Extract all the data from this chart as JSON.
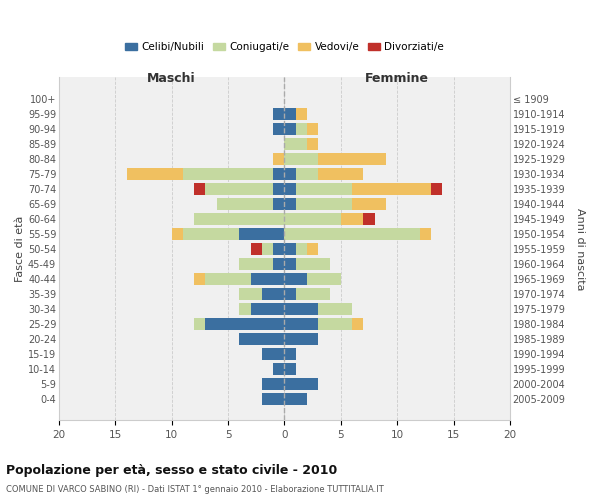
{
  "age_groups": [
    "0-4",
    "5-9",
    "10-14",
    "15-19",
    "20-24",
    "25-29",
    "30-34",
    "35-39",
    "40-44",
    "45-49",
    "50-54",
    "55-59",
    "60-64",
    "65-69",
    "70-74",
    "75-79",
    "80-84",
    "85-89",
    "90-94",
    "95-99",
    "100+"
  ],
  "birth_years": [
    "2005-2009",
    "2000-2004",
    "1995-1999",
    "1990-1994",
    "1985-1989",
    "1980-1984",
    "1975-1979",
    "1970-1974",
    "1965-1969",
    "1960-1964",
    "1955-1959",
    "1950-1954",
    "1945-1949",
    "1940-1944",
    "1935-1939",
    "1930-1934",
    "1925-1929",
    "1920-1924",
    "1915-1919",
    "1910-1914",
    "≤ 1909"
  ],
  "male_celibe": [
    2,
    2,
    1,
    2,
    4,
    7,
    3,
    2,
    3,
    1,
    1,
    4,
    0,
    1,
    1,
    1,
    0,
    0,
    1,
    1,
    0
  ],
  "male_coniugato": [
    0,
    0,
    0,
    0,
    0,
    1,
    1,
    2,
    4,
    3,
    1,
    5,
    8,
    5,
    6,
    8,
    0,
    0,
    0,
    0,
    0
  ],
  "male_vedovo": [
    0,
    0,
    0,
    0,
    0,
    0,
    0,
    0,
    1,
    0,
    0,
    1,
    0,
    0,
    0,
    5,
    1,
    0,
    0,
    0,
    0
  ],
  "male_divorziato": [
    0,
    0,
    0,
    0,
    0,
    0,
    0,
    0,
    0,
    0,
    1,
    0,
    0,
    0,
    1,
    0,
    0,
    0,
    0,
    0,
    0
  ],
  "female_celibe": [
    2,
    3,
    1,
    1,
    3,
    3,
    3,
    1,
    2,
    1,
    1,
    0,
    0,
    1,
    1,
    1,
    0,
    0,
    1,
    1,
    0
  ],
  "female_coniugato": [
    0,
    0,
    0,
    0,
    0,
    3,
    3,
    3,
    3,
    3,
    1,
    12,
    5,
    5,
    5,
    2,
    3,
    2,
    1,
    0,
    0
  ],
  "female_vedovo": [
    0,
    0,
    0,
    0,
    0,
    1,
    0,
    0,
    0,
    0,
    1,
    1,
    2,
    3,
    7,
    4,
    6,
    1,
    1,
    1,
    0
  ],
  "female_divorziato": [
    0,
    0,
    0,
    0,
    0,
    0,
    0,
    0,
    0,
    0,
    0,
    0,
    1,
    0,
    1,
    0,
    0,
    0,
    0,
    0,
    0
  ],
  "colors": {
    "celibe": "#3B6FA0",
    "coniugato": "#C5D9A0",
    "vedovo": "#F0C060",
    "divorziato": "#C0302A"
  },
  "title": "Popolazione per età, sesso e stato civile - 2010",
  "subtitle": "COMUNE DI VARCO SABINO (RI) - Dati ISTAT 1° gennaio 2010 - Elaborazione TUTTITALIA.IT",
  "xlabel_left": "Maschi",
  "xlabel_right": "Femmine",
  "ylabel_left": "Fasce di età",
  "ylabel_right": "Anni di nascita",
  "xlim": 20,
  "background_color": "#f0f0f0",
  "grid_color": "#cccccc"
}
